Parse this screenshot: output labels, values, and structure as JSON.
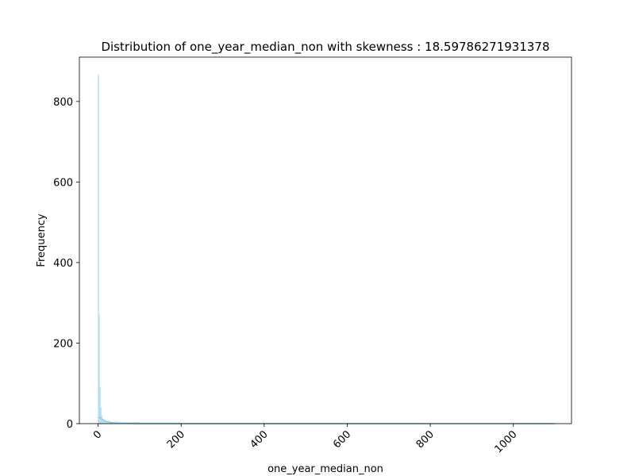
{
  "chart_data": {
    "type": "bar",
    "title": "Distribution of one_year_median_non with skewness : 18.59786271931378",
    "xlabel": "one_year_median_non",
    "ylabel": "Frequency",
    "xlim": [
      -45,
      1140
    ],
    "ylim": [
      0,
      910
    ],
    "xticks": [
      0,
      200,
      400,
      600,
      800,
      1000
    ],
    "yticks": [
      0,
      200,
      400,
      600,
      800
    ],
    "bar_color": "#87ceeb",
    "kde_color": "#87ceeb",
    "grid": false,
    "histogram": {
      "bin_edges": [
        0,
        2,
        4,
        6,
        8,
        10,
        12,
        14,
        16,
        18,
        20,
        30,
        50,
        100,
        200,
        400,
        600,
        800,
        1000,
        1100
      ],
      "counts": [
        865,
        270,
        90,
        40,
        20,
        12,
        8,
        5,
        4,
        3,
        6,
        4,
        3,
        2,
        1,
        1,
        1,
        0,
        1
      ]
    },
    "kde": {
      "x": [
        0,
        3,
        6,
        10,
        15,
        20,
        30,
        45,
        70,
        100,
        200,
        400,
        600,
        800,
        1000,
        1100
      ],
      "y": [
        14,
        16,
        14,
        11,
        8,
        5,
        2.5,
        1,
        0.5,
        0.2,
        0.1,
        0.05,
        0.05,
        0.05,
        0.05,
        0.05
      ]
    }
  }
}
